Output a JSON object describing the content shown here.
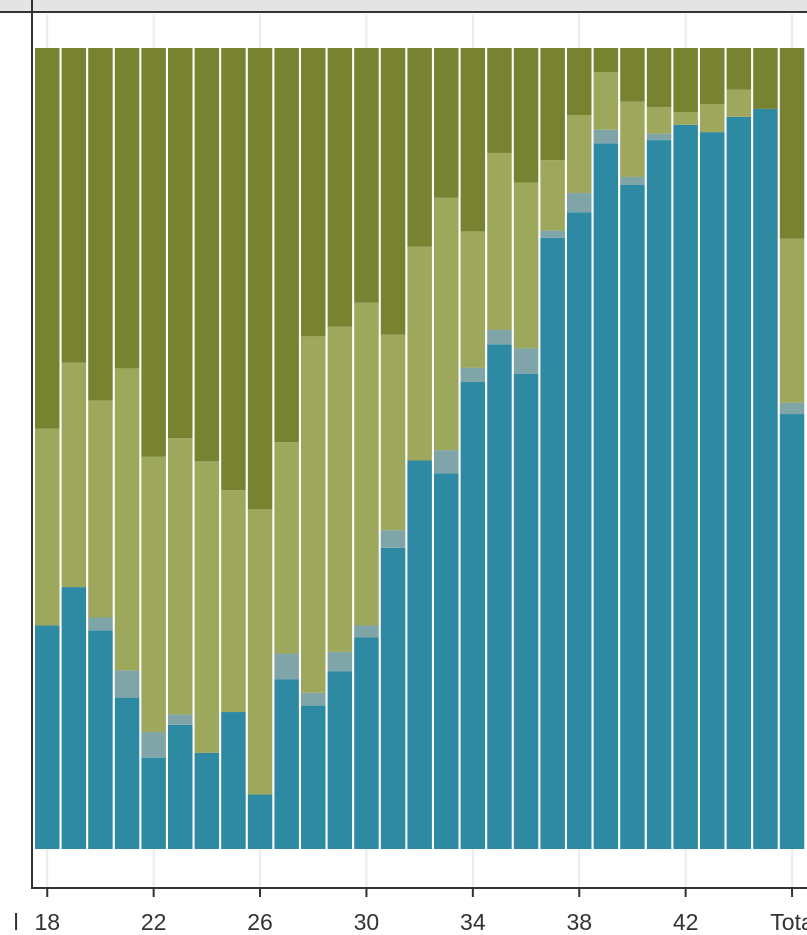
{
  "chart_data": {
    "type": "bar",
    "stacked": true,
    "orientation": "vertical",
    "ylim": [
      0,
      1
    ],
    "grid": true,
    "legend": "none",
    "categories": [
      "18",
      "19",
      "20",
      "21",
      "22",
      "23",
      "24",
      "25",
      "26",
      "27",
      "28",
      "29",
      "30",
      "31",
      "32",
      "33",
      "34",
      "35",
      "36",
      "37",
      "38",
      "39",
      "40",
      "41",
      "42",
      "43",
      "44",
      "45",
      "Total"
    ],
    "x_tick_labels": [
      "18",
      "22",
      "26",
      "30",
      "34",
      "38",
      "42",
      "Tota"
    ],
    "x_tick_categories": [
      "18",
      "22",
      "26",
      "30",
      "34",
      "38",
      "42",
      "Total"
    ],
    "left_edge_label": "l",
    "series": [
      {
        "color": "#2e8aa3",
        "values": [
          0.279,
          0.327,
          0.273,
          0.189,
          0.114,
          0.155,
          0.12,
          0.171,
          0.068,
          0.212,
          0.179,
          0.222,
          0.264,
          0.376,
          0.485,
          0.469,
          0.583,
          0.63,
          0.593,
          0.763,
          0.795,
          0.881,
          0.829,
          0.885,
          0.904,
          0.895,
          0.914,
          0.924,
          0.543
        ]
      },
      {
        "color": "#7fa5a8",
        "values": [
          0.0,
          0.0,
          0.016,
          0.034,
          0.032,
          0.013,
          0.0,
          0.0,
          0.0,
          0.032,
          0.016,
          0.024,
          0.015,
          0.022,
          0.0,
          0.029,
          0.018,
          0.018,
          0.032,
          0.009,
          0.024,
          0.017,
          0.01,
          0.008,
          0.0,
          0.0,
          0.0,
          0.0,
          0.014
        ]
      },
      {
        "color": "#9ea85d",
        "values": [
          0.246,
          0.28,
          0.271,
          0.377,
          0.344,
          0.345,
          0.364,
          0.277,
          0.356,
          0.264,
          0.445,
          0.406,
          0.403,
          0.244,
          0.267,
          0.315,
          0.17,
          0.221,
          0.207,
          0.088,
          0.097,
          0.072,
          0.094,
          0.033,
          0.016,
          0.035,
          0.034,
          0.0,
          0.205
        ]
      },
      {
        "color": "#788332",
        "values": [
          0.475,
          0.393,
          0.44,
          0.4,
          0.51,
          0.487,
          0.516,
          0.552,
          0.576,
          0.492,
          0.36,
          0.348,
          0.318,
          0.358,
          0.248,
          0.187,
          0.229,
          0.131,
          0.168,
          0.14,
          0.084,
          0.03,
          0.067,
          0.074,
          0.08,
          0.07,
          0.052,
          0.076,
          0.238
        ]
      }
    ]
  }
}
